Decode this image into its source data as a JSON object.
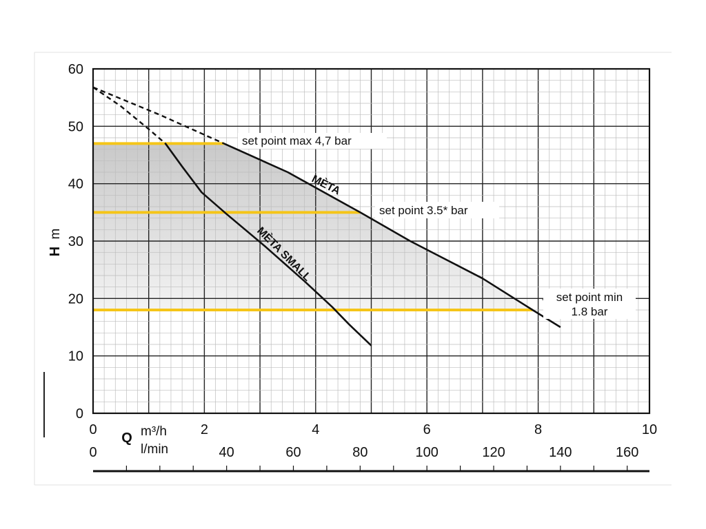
{
  "chart_data": {
    "type": "line",
    "y_axis": {
      "title": "H",
      "unit": "m",
      "range": [
        0,
        60
      ],
      "ticks": [
        0,
        10,
        20,
        30,
        40,
        50,
        60
      ]
    },
    "x_axis": {
      "title": "Q",
      "unit_primary": "m³/h",
      "unit_secondary": "l/min",
      "range": [
        0,
        10
      ],
      "ticks": [
        0,
        2,
        4,
        6,
        8,
        10
      ],
      "secondary_range": [
        0,
        166.67
      ],
      "secondary_ticks": [
        0,
        40,
        60,
        80,
        100,
        120,
        140,
        160
      ]
    },
    "grid": true,
    "series": [
      {
        "name": "MÈTA",
        "color": "#111111",
        "dashed_points": [
          [
            0,
            56.8
          ],
          [
            1.2,
            52
          ],
          [
            2.35,
            47
          ]
        ],
        "solid_points": [
          [
            2.35,
            47
          ],
          [
            3.5,
            42
          ],
          [
            4.8,
            35
          ],
          [
            5.7,
            30
          ],
          [
            7.0,
            23.5
          ],
          [
            7.9,
            18
          ],
          [
            8.4,
            15
          ]
        ]
      },
      {
        "name": "MÈTA SMALL",
        "color": "#111111",
        "dashed_points": [
          [
            0,
            56.8
          ],
          [
            0.5,
            53.5
          ],
          [
            1.0,
            49.5
          ],
          [
            1.3,
            47
          ]
        ],
        "solid_points": [
          [
            1.3,
            47
          ],
          [
            1.6,
            43
          ],
          [
            1.95,
            38.5
          ],
          [
            2.4,
            34.7
          ],
          [
            3.1,
            29
          ],
          [
            3.8,
            23
          ],
          [
            4.3,
            18.5
          ],
          [
            4.6,
            15.5
          ],
          [
            5.0,
            11.8
          ]
        ]
      }
    ],
    "set_points": [
      {
        "label": "set point max 4,7 bar",
        "h": 47,
        "q_end": 2.35,
        "color": "#f5c518"
      },
      {
        "label": "set point 3.5* bar",
        "h": 35,
        "q_end": 4.8,
        "color": "#f5c518"
      },
      {
        "label_line1": "set point min",
        "label_line2": "1.8 bar",
        "h": 18,
        "q_end": 7.9,
        "color": "#f5c518"
      }
    ],
    "shaded_region": {
      "color_from": "#c9c9c9",
      "color_to": "#f3f3f3"
    }
  }
}
